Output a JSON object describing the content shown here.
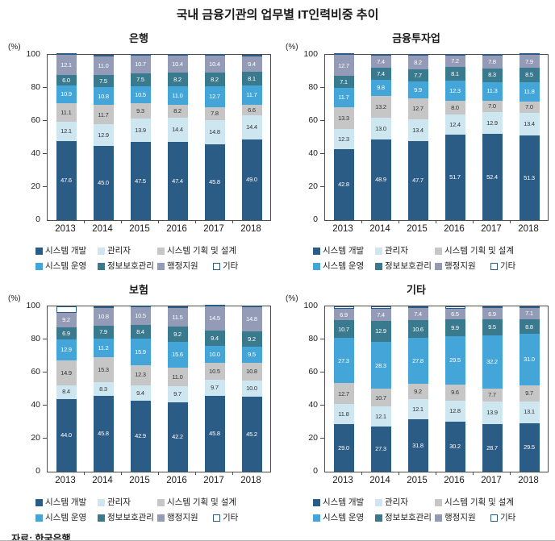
{
  "page": {
    "title": "국내 금융기관의 업무별 IT인력비중 추이",
    "source": "자료: 한국은행"
  },
  "axis": {
    "unit": "(%)",
    "ylim": [
      0,
      100
    ],
    "yticks": [
      0,
      20,
      40,
      60,
      80,
      100
    ],
    "grid": false
  },
  "series_meta": [
    {
      "name": "시스템 개발",
      "color": "#2b5c86",
      "label_color": "#ffffff"
    },
    {
      "name": "관리자",
      "color": "#cee6ef",
      "label_color": "#333333"
    },
    {
      "name": "시스템 기획 및 설계",
      "color": "#c6c6c6",
      "label_color": "#333333"
    },
    {
      "name": "시스템 운영",
      "color": "#44a5d8",
      "label_color": "#ffffff"
    },
    {
      "name": "정보보호관리",
      "color": "#3a7a8e",
      "label_color": "#ffffff"
    },
    {
      "name": "행정지원",
      "color": "#949bb6",
      "label_color": "#ffffff"
    },
    {
      "name": "기타",
      "color": "#ffffff",
      "label_color": "#333333",
      "border_color": "#2b5c86",
      "show_value_labels": false
    }
  ],
  "chart_data": [
    {
      "type": "bar",
      "stacked": true,
      "title": "은행",
      "categories": [
        "2013",
        "2014",
        "2015",
        "2016",
        "2017",
        "2018"
      ],
      "series": [
        {
          "name": "시스템 개발",
          "values": [
            47.6,
            45.0,
            47.5,
            47.4,
            45.8,
            49.0
          ]
        },
        {
          "name": "관리자",
          "values": [
            12.1,
            12.9,
            13.9,
            14.4,
            14.8,
            14.4
          ]
        },
        {
          "name": "시스템 기획 및 설계",
          "values": [
            11.1,
            11.7,
            9.3,
            8.2,
            7.8,
            6.6
          ]
        },
        {
          "name": "시스템 운영",
          "values": [
            10.9,
            10.8,
            10.5,
            11.0,
            12.7,
            11.7
          ]
        },
        {
          "name": "정보보호관리",
          "values": [
            6.0,
            7.5,
            7.5,
            8.2,
            8.2,
            8.1
          ]
        },
        {
          "name": "행정지원",
          "values": [
            12.1,
            11.0,
            10.7,
            10.4,
            10.4,
            9.4
          ]
        },
        {
          "name": "기타",
          "values": [
            0.2,
            1.1,
            0.6,
            0.4,
            0.3,
            0.8
          ]
        }
      ]
    },
    {
      "type": "bar",
      "stacked": true,
      "title": "금융투자업",
      "categories": [
        "2013",
        "2014",
        "2015",
        "2016",
        "2017",
        "2018"
      ],
      "series": [
        {
          "name": "시스템 개발",
          "values": [
            42.8,
            48.9,
            47.7,
            51.7,
            52.4,
            51.3
          ]
        },
        {
          "name": "관리자",
          "values": [
            12.3,
            13.0,
            13.4,
            12.4,
            12.9,
            13.4
          ]
        },
        {
          "name": "시스템 기획 및 설계",
          "values": [
            13.3,
            13.2,
            12.7,
            8.0,
            7.0,
            7.0
          ]
        },
        {
          "name": "시스템 운영",
          "values": [
            11.7,
            9.8,
            9.9,
            12.3,
            11.3,
            11.8
          ]
        },
        {
          "name": "정보보호관리",
          "values": [
            7.1,
            7.4,
            7.7,
            8.1,
            8.3,
            8.5
          ]
        },
        {
          "name": "행정지원",
          "values": [
            12.7,
            7.4,
            8.2,
            7.2,
            7.8,
            7.9
          ]
        },
        {
          "name": "기타",
          "values": [
            0.1,
            0.3,
            0.4,
            0.3,
            0.3,
            0.1
          ]
        }
      ]
    },
    {
      "type": "bar",
      "stacked": true,
      "title": "보험",
      "categories": [
        "2013",
        "2014",
        "2015",
        "2016",
        "2017",
        "2018"
      ],
      "series": [
        {
          "name": "시스템 개발",
          "values": [
            44.0,
            45.8,
            42.9,
            42.2,
            45.8,
            45.2
          ]
        },
        {
          "name": "관리자",
          "values": [
            8.4,
            8.3,
            9.4,
            9.7,
            9.7,
            10.0
          ]
        },
        {
          "name": "시스템 기획 및 설계",
          "values": [
            14.9,
            15.3,
            12.3,
            11.0,
            10.5,
            10.8
          ]
        },
        {
          "name": "시스템 운영",
          "values": [
            12.9,
            11.2,
            15.9,
            15.6,
            10.0,
            9.5
          ]
        },
        {
          "name": "정보보호관리",
          "values": [
            6.9,
            7.9,
            8.4,
            9.2,
            9.4,
            9.2
          ]
        },
        {
          "name": "행정지원",
          "values": [
            9.2,
            10.8,
            10.5,
            11.5,
            14.5,
            14.8
          ]
        },
        {
          "name": "기타",
          "values": [
            3.7,
            0.7,
            0.6,
            0.8,
            0.1,
            0.5
          ]
        }
      ]
    },
    {
      "type": "bar",
      "stacked": true,
      "title": "기타",
      "categories": [
        "2013",
        "2014",
        "2015",
        "2016",
        "2017",
        "2018"
      ],
      "series": [
        {
          "name": "시스템 개발",
          "values": [
            29.0,
            27.3,
            31.8,
            30.2,
            28.7,
            29.5
          ]
        },
        {
          "name": "관리자",
          "values": [
            11.8,
            12.1,
            12.1,
            12.8,
            13.9,
            13.1
          ]
        },
        {
          "name": "시스템 기획 및 설계",
          "values": [
            12.7,
            10.7,
            9.2,
            9.6,
            7.7,
            9.7
          ]
        },
        {
          "name": "시스템 운영",
          "values": [
            27.3,
            28.3,
            27.8,
            29.5,
            32.2,
            31.0
          ]
        },
        {
          "name": "정보보호관리",
          "values": [
            10.7,
            12.9,
            10.6,
            9.9,
            9.5,
            8.8
          ]
        },
        {
          "name": "행정지원",
          "values": [
            6.9,
            7.4,
            7.4,
            6.5,
            6.9,
            7.1
          ]
        },
        {
          "name": "기타",
          "values": [
            1.6,
            1.3,
            1.1,
            1.5,
            1.1,
            0.8
          ]
        }
      ]
    }
  ]
}
